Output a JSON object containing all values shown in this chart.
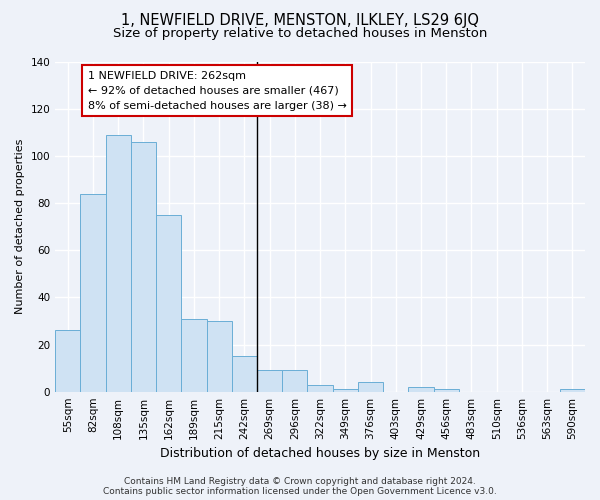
{
  "title": "1, NEWFIELD DRIVE, MENSTON, ILKLEY, LS29 6JQ",
  "subtitle": "Size of property relative to detached houses in Menston",
  "xlabel": "Distribution of detached houses by size in Menston",
  "ylabel": "Number of detached properties",
  "categories": [
    "55sqm",
    "82sqm",
    "108sqm",
    "135sqm",
    "162sqm",
    "189sqm",
    "215sqm",
    "242sqm",
    "269sqm",
    "296sqm",
    "322sqm",
    "349sqm",
    "376sqm",
    "403sqm",
    "429sqm",
    "456sqm",
    "483sqm",
    "510sqm",
    "536sqm",
    "563sqm",
    "590sqm"
  ],
  "values": [
    26,
    84,
    109,
    106,
    75,
    31,
    30,
    15,
    9,
    9,
    3,
    1,
    4,
    0,
    2,
    1,
    0,
    0,
    0,
    0,
    1
  ],
  "bar_color": "#cfe2f3",
  "bar_edge_color": "#6aaed6",
  "ylim": [
    0,
    140
  ],
  "yticks": [
    0,
    20,
    40,
    60,
    80,
    100,
    120,
    140
  ],
  "property_bin_index": 7,
  "vline_color": "#000000",
  "annotation_text": "1 NEWFIELD DRIVE: 262sqm\n← 92% of detached houses are smaller (467)\n8% of semi-detached houses are larger (38) →",
  "annotation_box_color": "#ffffff",
  "annotation_box_edge_color": "#cc0000",
  "footer_text": "Contains HM Land Registry data © Crown copyright and database right 2024.\nContains public sector information licensed under the Open Government Licence v3.0.",
  "background_color": "#eef2f9",
  "grid_color": "#ffffff",
  "title_fontsize": 10.5,
  "subtitle_fontsize": 9.5,
  "annotation_fontsize": 8,
  "ylabel_fontsize": 8,
  "xlabel_fontsize": 9,
  "tick_fontsize": 7.5,
  "footer_fontsize": 6.5
}
